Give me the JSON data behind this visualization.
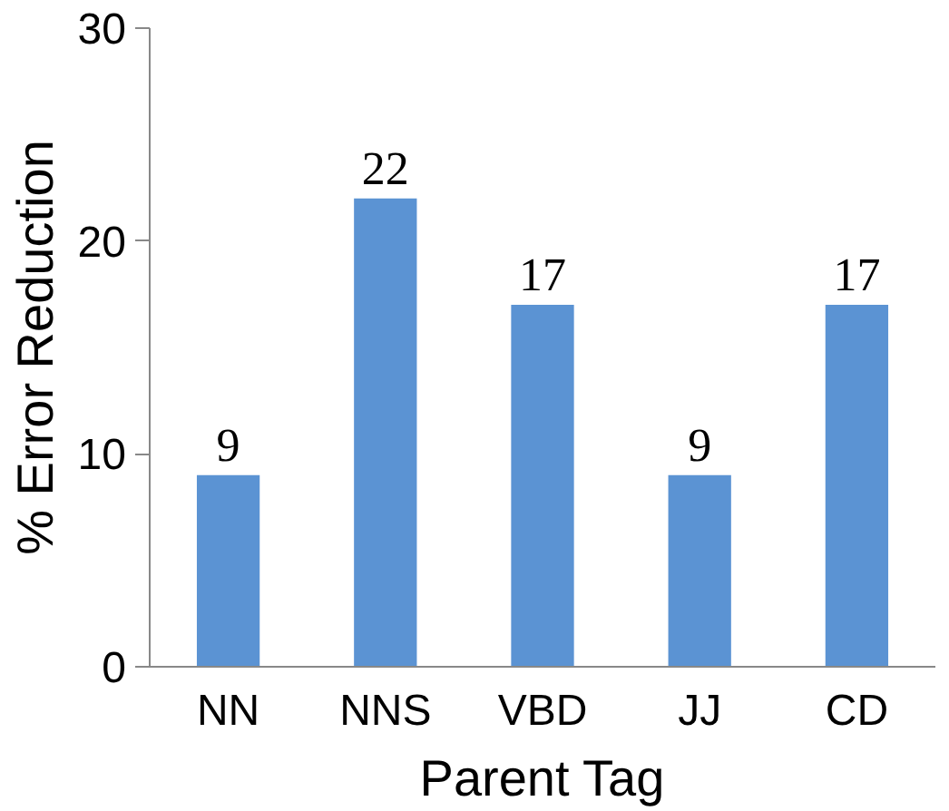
{
  "chart_data": {
    "type": "bar",
    "xlabel": "Parent Tag",
    "ylabel": "% Error Reduction",
    "categories": [
      "NN",
      "NNS",
      "VBD",
      "JJ",
      "CD"
    ],
    "values": [
      9,
      22,
      17,
      9,
      17
    ],
    "color": "#5b93d3",
    "ylim": [
      0,
      30
    ],
    "yticks": [
      0,
      10,
      20,
      30
    ],
    "grid": false,
    "data_labels": true
  }
}
